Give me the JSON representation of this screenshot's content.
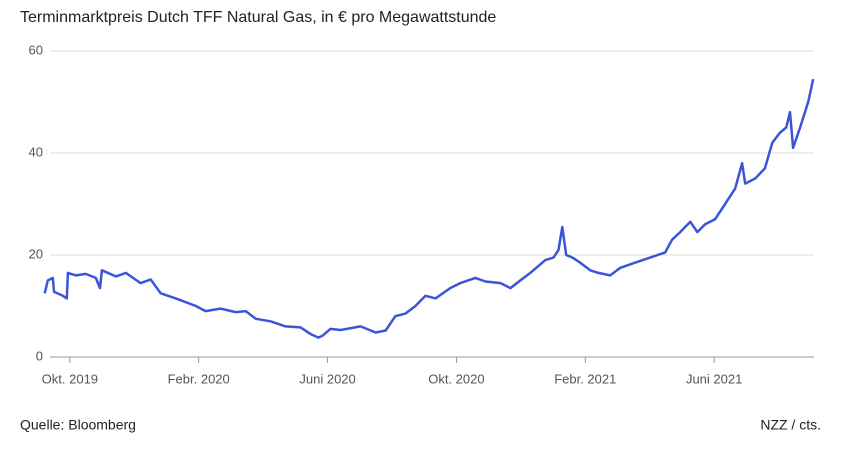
{
  "chart_data": {
    "type": "line",
    "title": "Terminmarktpreis Dutch TFF Natural Gas, in € pro Megawattstunde",
    "source": "Quelle: Bloomberg",
    "credit": "NZZ / cts.",
    "x": [
      2019.685,
      2019.693,
      2019.706,
      2019.709,
      2019.732,
      2019.742,
      2019.745,
      2019.766,
      2019.791,
      2019.817,
      2019.828,
      2019.833,
      2019.869,
      2019.895,
      2019.933,
      2019.959,
      2019.985,
      2020.024,
      2020.076,
      2020.101,
      2020.14,
      2020.179,
      2020.205,
      2020.231,
      2020.269,
      2020.308,
      2020.347,
      2020.373,
      2020.393,
      2020.404,
      2020.424,
      2020.45,
      2020.502,
      2020.541,
      2020.567,
      2020.592,
      2020.618,
      2020.644,
      2020.67,
      2020.696,
      2020.734,
      2020.76,
      2020.799,
      2020.825,
      2020.864,
      2020.89,
      2020.915,
      2020.941,
      2020.98,
      2021.001,
      2021.014,
      2021.024,
      2021.034,
      2021.05,
      2021.07,
      2021.096,
      2021.117,
      2021.148,
      2021.174,
      2021.213,
      2021.251,
      2021.29,
      2021.308,
      2021.329,
      2021.355,
      2021.373,
      2021.393,
      2021.419,
      2021.445,
      2021.471,
      2021.489,
      2021.497,
      2021.523,
      2021.548,
      2021.567,
      2021.587,
      2021.603,
      2021.613,
      2021.621,
      2021.639,
      2021.66,
      2021.673
    ],
    "series": [
      {
        "name": "Dutch TFF",
        "color": "#3b55d9",
        "values": [
          12.5,
          15,
          15.5,
          12.8,
          12,
          11.5,
          16.5,
          16,
          16.3,
          15.5,
          13.5,
          17,
          15.8,
          16.5,
          14.5,
          15.2,
          12.5,
          11.5,
          10,
          9,
          9.5,
          8.8,
          9,
          7.5,
          7,
          6,
          5.8,
          4.5,
          3.8,
          4.2,
          5.5,
          5.3,
          6,
          4.8,
          5.2,
          8,
          8.5,
          10,
          12,
          11.5,
          13.5,
          14.5,
          15.5,
          14.8,
          14.5,
          13.5,
          15,
          16.5,
          19,
          19.5,
          21,
          25.5,
          20,
          19.5,
          18.5,
          17,
          16.5,
          16,
          17.5,
          18.5,
          19.5,
          20.5,
          23,
          24.5,
          26.5,
          24.5,
          26,
          27,
          30,
          33,
          38,
          34,
          35,
          37,
          42,
          44,
          45,
          48,
          41,
          45,
          50,
          54.5
        ]
      }
    ],
    "xlim": [
      2019.665,
      2021.675
    ],
    "xticks": [
      {
        "value": 2019.75,
        "label": "Okt. 2019"
      },
      {
        "value": 2020.0833,
        "label": "Febr. 2020"
      },
      {
        "value": 2020.4167,
        "label": "Juni 2020"
      },
      {
        "value": 2020.75,
        "label": "Okt. 2020"
      },
      {
        "value": 2021.0833,
        "label": "Febr. 2021"
      },
      {
        "value": 2021.4167,
        "label": "Juni 2021"
      }
    ],
    "ylim": [
      0,
      60
    ],
    "yticks": [
      0,
      20,
      40,
      60
    ],
    "grid": true
  }
}
